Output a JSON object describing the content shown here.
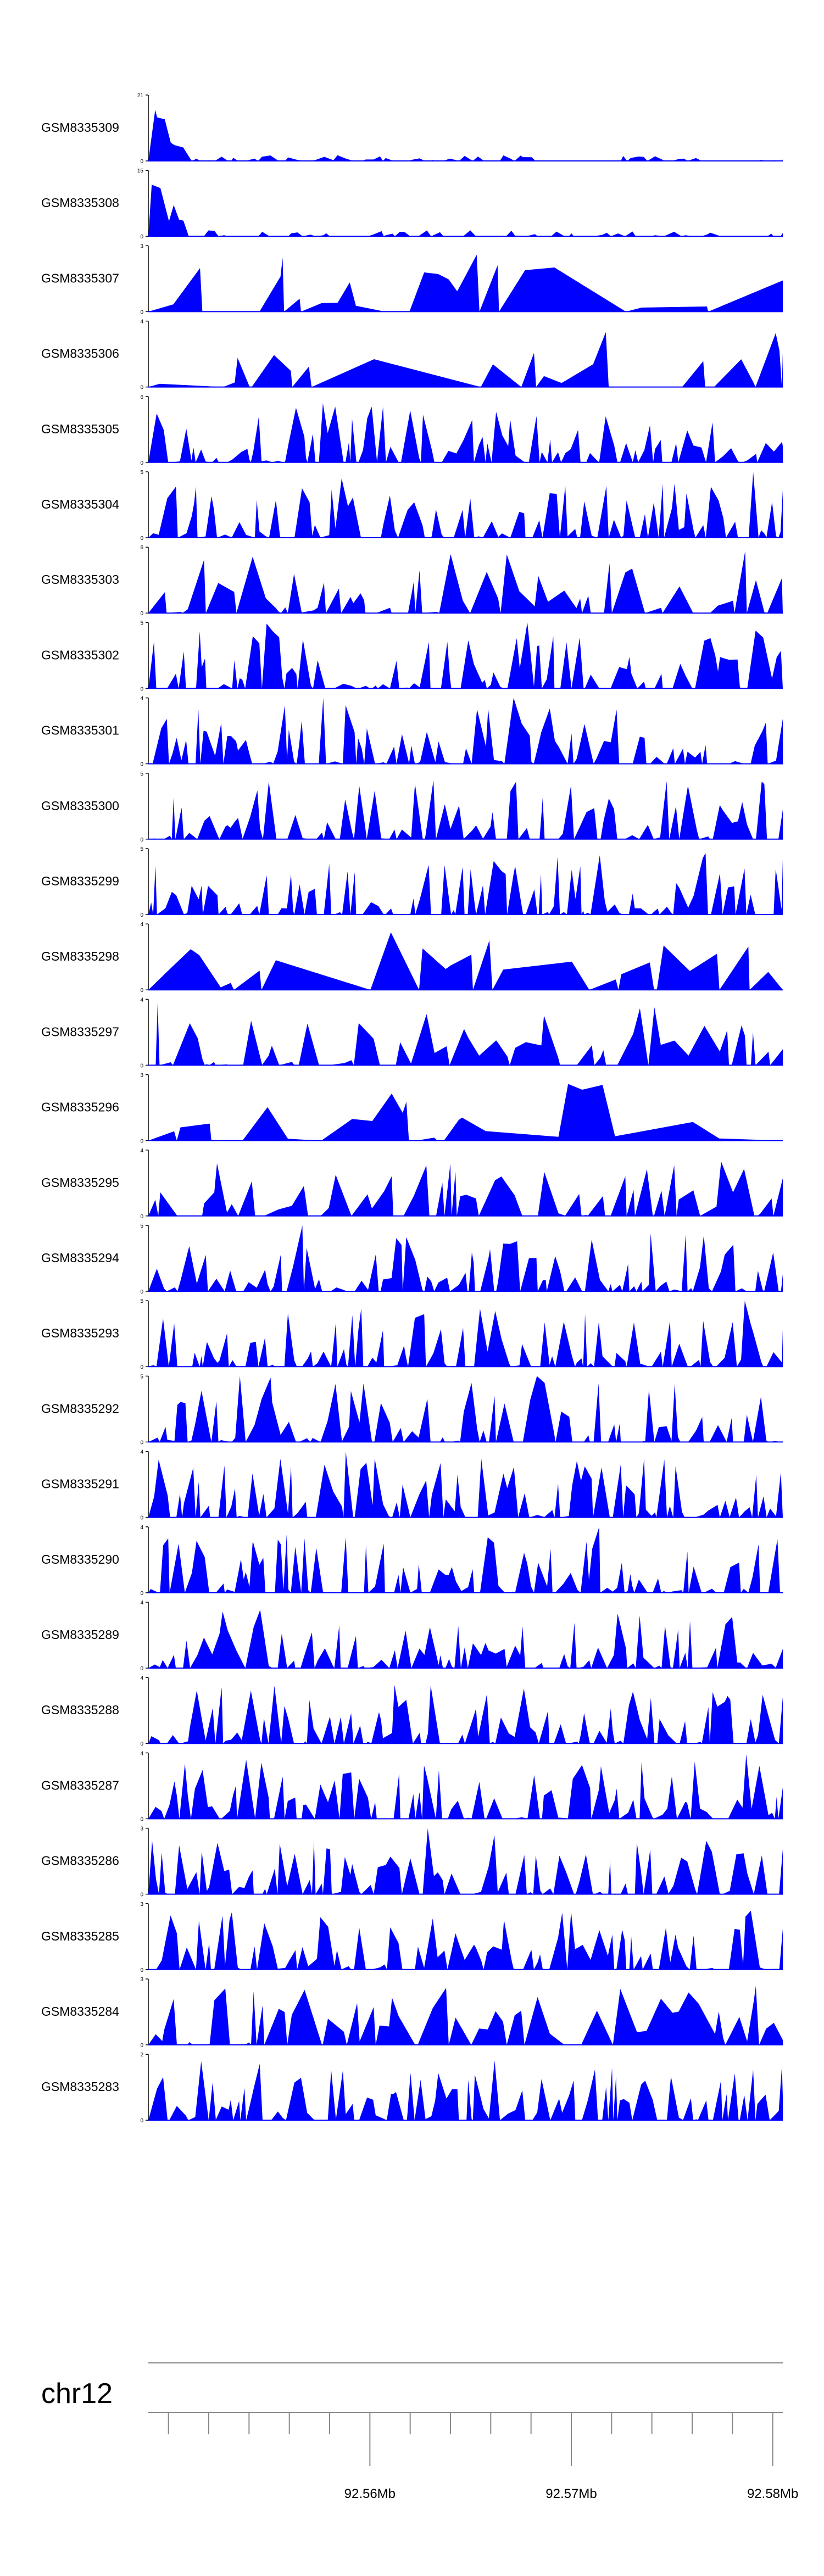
{
  "chart_data": {
    "type": "area",
    "fill_color": "#0000ff",
    "axis_color": "#000000",
    "tracks": [
      {
        "name": "GSM8335309",
        "ymin": "0",
        "ymax": "21",
        "ymax_value": 21,
        "seed": 309,
        "profile": "early-peak"
      },
      {
        "name": "GSM8335308",
        "ymin": "0",
        "ymax": "15",
        "ymax_value": 15,
        "seed": 308,
        "profile": "early-peak"
      },
      {
        "name": "GSM8335307",
        "ymin": "0",
        "ymax": "3",
        "ymax_value": 3,
        "seed": 307,
        "profile": "sparse"
      },
      {
        "name": "GSM8335306",
        "ymin": "0",
        "ymax": "4",
        "ymax_value": 4,
        "seed": 306,
        "profile": "sparse"
      },
      {
        "name": "GSM8335305",
        "ymin": "0",
        "ymax": "6",
        "ymax_value": 6,
        "seed": 305,
        "profile": "dense"
      },
      {
        "name": "GSM8335304",
        "ymin": "0",
        "ymax": "5",
        "ymax_value": 5,
        "seed": 304,
        "profile": "dense"
      },
      {
        "name": "GSM8335303",
        "ymin": "0",
        "ymax": "6",
        "ymax_value": 6,
        "seed": 303,
        "profile": "medium"
      },
      {
        "name": "GSM8335302",
        "ymin": "0",
        "ymax": "5",
        "ymax_value": 5,
        "seed": 302,
        "profile": "dense"
      },
      {
        "name": "GSM8335301",
        "ymin": "0",
        "ymax": "4",
        "ymax_value": 4,
        "seed": 301,
        "profile": "dense"
      },
      {
        "name": "GSM8335300",
        "ymin": "0",
        "ymax": "5",
        "ymax_value": 5,
        "seed": 300,
        "profile": "dense"
      },
      {
        "name": "GSM8335299",
        "ymin": "0",
        "ymax": "5",
        "ymax_value": 5,
        "seed": 299,
        "profile": "dense"
      },
      {
        "name": "GSM8335298",
        "ymin": "0",
        "ymax": "4",
        "ymax_value": 4,
        "seed": 298,
        "profile": "sparse"
      },
      {
        "name": "GSM8335297",
        "ymin": "0",
        "ymax": "4",
        "ymax_value": 4,
        "seed": 297,
        "profile": "medium"
      },
      {
        "name": "GSM8335296",
        "ymin": "0",
        "ymax": "3",
        "ymax_value": 3,
        "seed": 296,
        "profile": "sparse"
      },
      {
        "name": "GSM8335295",
        "ymin": "0",
        "ymax": "4",
        "ymax_value": 4,
        "seed": 295,
        "profile": "medium"
      },
      {
        "name": "GSM8335294",
        "ymin": "0",
        "ymax": "5",
        "ymax_value": 5,
        "seed": 294,
        "profile": "dense"
      },
      {
        "name": "GSM8335293",
        "ymin": "0",
        "ymax": "5",
        "ymax_value": 5,
        "seed": 293,
        "profile": "dense"
      },
      {
        "name": "GSM8335292",
        "ymin": "0",
        "ymax": "5",
        "ymax_value": 5,
        "seed": 292,
        "profile": "dense"
      },
      {
        "name": "GSM8335291",
        "ymin": "0",
        "ymax": "4",
        "ymax_value": 4,
        "seed": 291,
        "profile": "dense"
      },
      {
        "name": "GSM8335290",
        "ymin": "0",
        "ymax": "4",
        "ymax_value": 4,
        "seed": 290,
        "profile": "dense"
      },
      {
        "name": "GSM8335289",
        "ymin": "0",
        "ymax": "4",
        "ymax_value": 4,
        "seed": 289,
        "profile": "dense"
      },
      {
        "name": "GSM8335288",
        "ymin": "0",
        "ymax": "4",
        "ymax_value": 4,
        "seed": 288,
        "profile": "dense"
      },
      {
        "name": "GSM8335287",
        "ymin": "0",
        "ymax": "4",
        "ymax_value": 4,
        "seed": 287,
        "profile": "dense"
      },
      {
        "name": "GSM8335286",
        "ymin": "0",
        "ymax": "3",
        "ymax_value": 3,
        "seed": 286,
        "profile": "dense"
      },
      {
        "name": "GSM8335285",
        "ymin": "0",
        "ymax": "3",
        "ymax_value": 3,
        "seed": 285,
        "profile": "dense"
      },
      {
        "name": "GSM8335284",
        "ymin": "0",
        "ymax": "3",
        "ymax_value": 3,
        "seed": 284,
        "profile": "medium"
      },
      {
        "name": "GSM8335283",
        "ymin": "0",
        "ymax": "2",
        "ymax_value": 2,
        "seed": 283,
        "profile": "dense"
      }
    ],
    "genome_axis": {
      "chromosome": "chr12",
      "x_range_mb": [
        92.549,
        92.5805
      ],
      "tick_step_mb": 0.002,
      "labeled_ticks": [
        {
          "value": 92.56,
          "label": "92.56Mb"
        },
        {
          "value": 92.57,
          "label": "92.57Mb"
        },
        {
          "value": 92.58,
          "label": "92.58Mb"
        }
      ]
    }
  }
}
